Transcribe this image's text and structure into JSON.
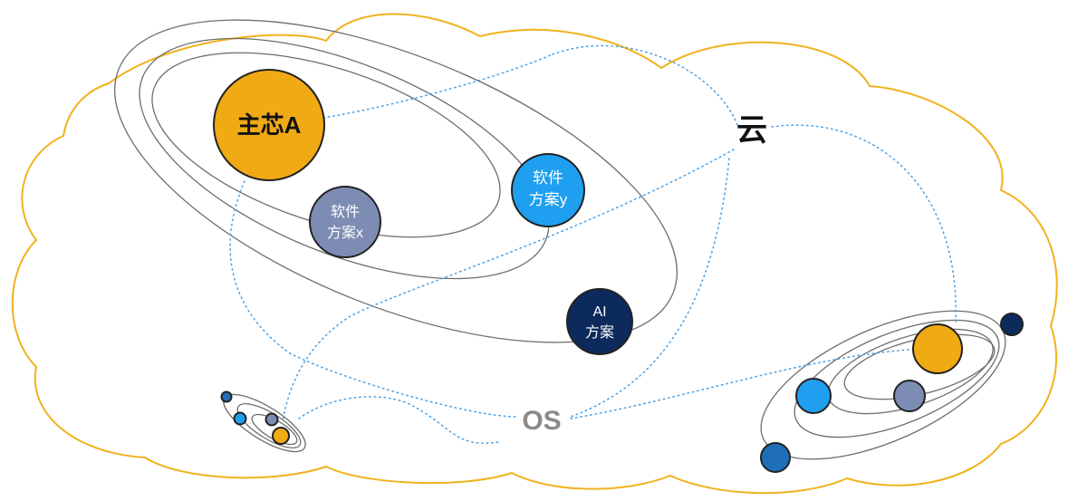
{
  "labels": {
    "chip_a": "主芯A",
    "software_x": [
      "软件",
      "方案x"
    ],
    "software_y": [
      "软件",
      "方案y"
    ],
    "ai": [
      "AI",
      "方案"
    ],
    "cloud": "云",
    "os": "OS"
  },
  "colors": {
    "chip_a": "#f0aa14",
    "software_x": "#7d8cb3",
    "software_y": "#1f9ff0",
    "ai": "#0d2a5c",
    "cloud_outline": "#f0b21e",
    "dotted_link": "#4a9fe3",
    "orbit_line": "#6e6e6e",
    "os_text": "#8a8a8a"
  }
}
